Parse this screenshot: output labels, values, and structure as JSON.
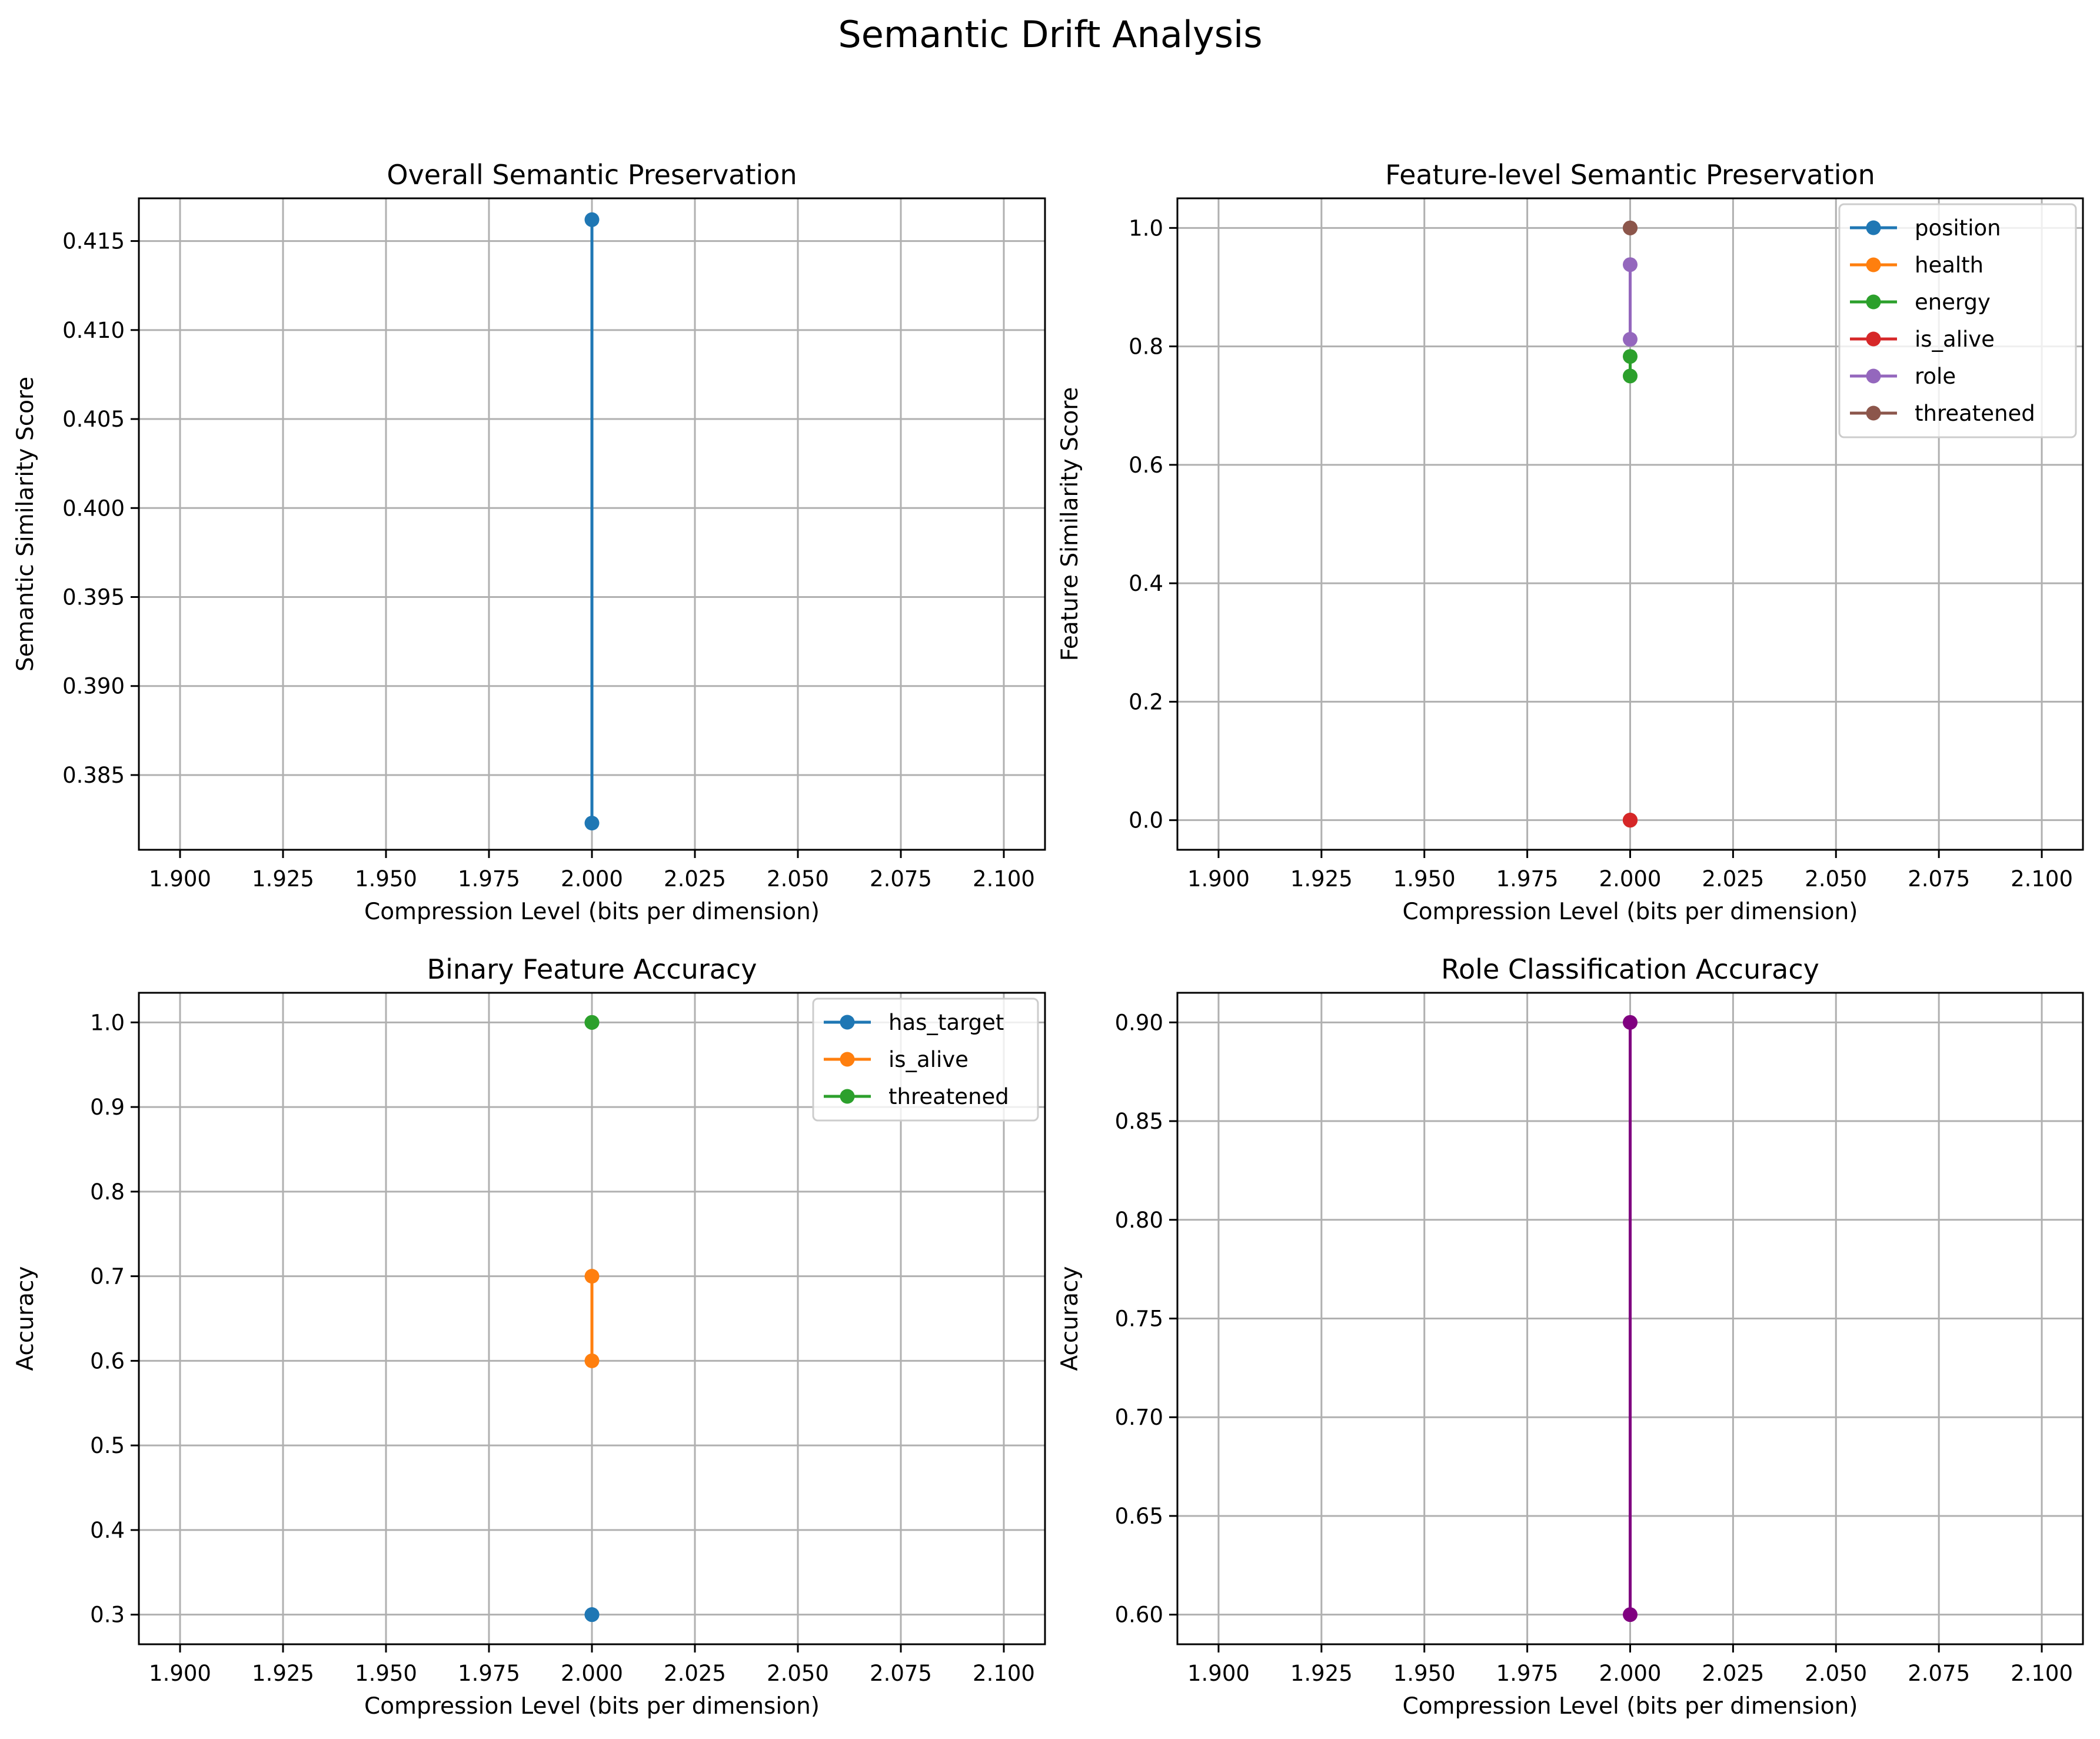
{
  "suptitle": "Semantic Drift Analysis",
  "chart_data": [
    {
      "type": "line",
      "title": "Overall Semantic Preservation",
      "xlabel": "Compression Level (bits per dimension)",
      "ylabel": "Semantic Similarity Score",
      "xlim": [
        1.89,
        2.11
      ],
      "ylim": [
        0.3808,
        0.4174
      ],
      "xticks": [
        "1.900",
        "1.925",
        "1.950",
        "1.975",
        "2.000",
        "2.025",
        "2.050",
        "2.075",
        "2.100"
      ],
      "yticks": [
        "0.385",
        "0.390",
        "0.395",
        "0.400",
        "0.405",
        "0.410",
        "0.415"
      ],
      "grid": true,
      "legend": null,
      "series": [
        {
          "x": [
            2.0,
            2.0
          ],
          "y": [
            0.3823,
            0.4162
          ],
          "color": "#1f77b4"
        }
      ]
    },
    {
      "type": "line",
      "title": "Feature-level Semantic Preservation",
      "xlabel": "Compression Level (bits per dimension)",
      "ylabel": "Feature Similarity Score",
      "xlim": [
        1.89,
        2.11
      ],
      "ylim": [
        -0.05,
        1.05
      ],
      "xticks": [
        "1.900",
        "1.925",
        "1.950",
        "1.975",
        "2.000",
        "2.025",
        "2.050",
        "2.075",
        "2.100"
      ],
      "yticks": [
        "0.0",
        "0.2",
        "0.4",
        "0.6",
        "0.8",
        "1.0"
      ],
      "grid": true,
      "legend": "top-right",
      "series": [
        {
          "name": "position",
          "x": [
            2.0,
            2.0
          ],
          "y": [
            0.0,
            0.0
          ],
          "color": "#1f77b4"
        },
        {
          "name": "health",
          "x": [
            2.0,
            2.0
          ],
          "y": [
            0.0,
            0.0
          ],
          "color": "#ff7f0e"
        },
        {
          "name": "energy",
          "x": [
            2.0,
            2.0
          ],
          "y": [
            0.75,
            0.783
          ],
          "color": "#2ca02c"
        },
        {
          "name": "is_alive",
          "x": [
            2.0,
            2.0
          ],
          "y": [
            0.0,
            0.0
          ],
          "color": "#d62728"
        },
        {
          "name": "role",
          "x": [
            2.0,
            2.0
          ],
          "y": [
            0.812,
            0.938
          ],
          "color": "#9467bd"
        },
        {
          "name": "threatened",
          "x": [
            2.0,
            2.0
          ],
          "y": [
            1.0,
            1.0
          ],
          "color": "#8c564b"
        }
      ]
    },
    {
      "type": "line",
      "title": "Binary Feature Accuracy",
      "xlabel": "Compression Level (bits per dimension)",
      "ylabel": "Accuracy",
      "xlim": [
        1.89,
        2.11
      ],
      "ylim": [
        0.265,
        1.035
      ],
      "xticks": [
        "1.900",
        "1.925",
        "1.950",
        "1.975",
        "2.000",
        "2.025",
        "2.050",
        "2.075",
        "2.100"
      ],
      "yticks": [
        "0.3",
        "0.4",
        "0.5",
        "0.6",
        "0.7",
        "0.8",
        "0.9",
        "1.0"
      ],
      "grid": true,
      "legend": "top-right",
      "series": [
        {
          "name": "has_target",
          "x": [
            2.0,
            2.0
          ],
          "y": [
            0.3,
            0.3
          ],
          "color": "#1f77b4"
        },
        {
          "name": "is_alive",
          "x": [
            2.0,
            2.0
          ],
          "y": [
            0.6,
            0.7
          ],
          "color": "#ff7f0e"
        },
        {
          "name": "threatened",
          "x": [
            2.0,
            2.0
          ],
          "y": [
            1.0,
            1.0
          ],
          "color": "#2ca02c"
        }
      ]
    },
    {
      "type": "line",
      "title": "Role Classification Accuracy",
      "xlabel": "Compression Level (bits per dimension)",
      "ylabel": "Accuracy",
      "xlim": [
        1.89,
        2.11
      ],
      "ylim": [
        0.585,
        0.915
      ],
      "xticks": [
        "1.900",
        "1.925",
        "1.950",
        "1.975",
        "2.000",
        "2.025",
        "2.050",
        "2.075",
        "2.100"
      ],
      "yticks": [
        "0.60",
        "0.65",
        "0.70",
        "0.75",
        "0.80",
        "0.85",
        "0.90"
      ],
      "grid": true,
      "legend": null,
      "series": [
        {
          "x": [
            2.0,
            2.0
          ],
          "y": [
            0.6,
            0.9
          ],
          "color": "#800080"
        }
      ]
    }
  ]
}
